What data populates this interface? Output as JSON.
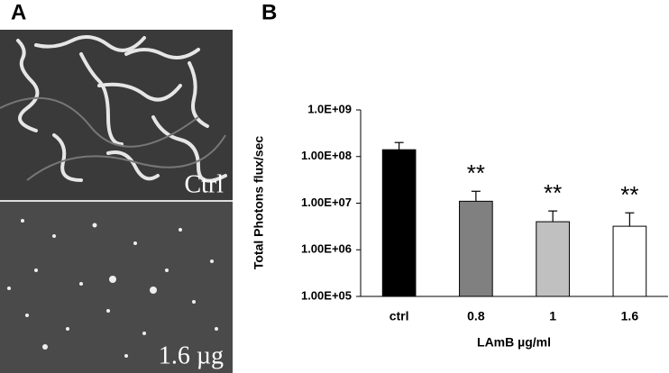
{
  "panel_a": {
    "label": "A",
    "images": [
      {
        "label": "Ctrl"
      },
      {
        "label": "1.6 µg"
      }
    ]
  },
  "chart_data": {
    "type": "bar",
    "panel_label": "B",
    "ylabel": "Total Photons flux/sec",
    "xlabel": "LAmB µg/ml",
    "categories": [
      "ctrl",
      "0.8",
      "1",
      "1.6"
    ],
    "values": [
      140000000,
      11000000,
      4000000,
      3200000
    ],
    "errors": [
      60000000,
      7000000,
      2800000,
      3000000
    ],
    "colors": [
      "#000000",
      "#808080",
      "#c0c0c0",
      "#ffffff"
    ],
    "annotations": [
      {
        "x": "0.8",
        "text": "**"
      },
      {
        "x": "1",
        "text": "**"
      },
      {
        "x": "1.6",
        "text": "**"
      }
    ],
    "log_scale": true,
    "ylim": [
      100000,
      1000000000
    ],
    "yticks": [
      {
        "value": 100000,
        "label": "1.00E+05"
      },
      {
        "value": 1000000,
        "label": "1.00E+06"
      },
      {
        "value": 10000000,
        "label": "1.00E+07"
      },
      {
        "value": 100000000,
        "label": "1.00E+08"
      },
      {
        "value": 1000000000,
        "label": "1.0E+09"
      }
    ]
  }
}
